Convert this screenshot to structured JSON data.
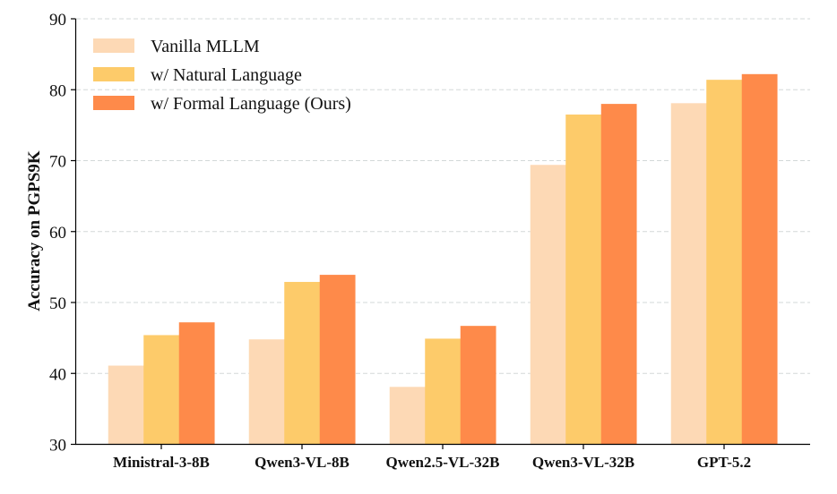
{
  "chart_data": {
    "type": "bar",
    "title": "",
    "xlabel": "",
    "ylabel": "Accuracy on PGPS9K",
    "ylim": [
      30,
      90
    ],
    "yticks": [
      30,
      40,
      50,
      60,
      70,
      80,
      90
    ],
    "grid": "horizontal dashed",
    "legend_position": "upper left",
    "categories": [
      "Ministral-3-8B",
      "Qwen3-VL-8B",
      "Qwen2.5-VL-32B",
      "Qwen3-VL-32B",
      "GPT-5.2"
    ],
    "series": [
      {
        "name": "Vanilla MLLM",
        "color": "#FDD9B5",
        "values": [
          41.1,
          44.8,
          38.1,
          69.4,
          78.1
        ]
      },
      {
        "name": "w/ Natural Language",
        "color": "#FDCB6A",
        "values": [
          45.4,
          52.9,
          44.9,
          76.5,
          81.4
        ]
      },
      {
        "name": "w/ Formal Language (Ours)",
        "color": "#FE8A4A",
        "values": [
          47.2,
          53.9,
          46.7,
          78.0,
          82.2
        ]
      }
    ]
  }
}
